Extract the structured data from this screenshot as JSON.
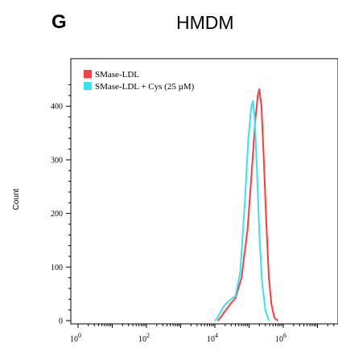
{
  "panel": {
    "letter": "G",
    "title": "HMDM"
  },
  "chart_data": {
    "type": "line",
    "ylabel": "Count",
    "xscale": "log",
    "xlim": [
      1,
      10000000
    ],
    "ylim": [
      0,
      460
    ],
    "x_ticks": [
      {
        "base": "10",
        "exp": "0",
        "value": 1
      },
      {
        "base": "10",
        "exp": "2",
        "value": 100
      },
      {
        "base": "10",
        "exp": "4",
        "value": 10000
      },
      {
        "base": "10",
        "exp": "6",
        "value": 1000000
      }
    ],
    "y_ticks": [
      0,
      100,
      200,
      300,
      400
    ],
    "legend_position": "top-left",
    "series": [
      {
        "name": "SMase-LDL",
        "color": "#ff3b3b",
        "points": [
          [
            12000,
            0
          ],
          [
            14000,
            4
          ],
          [
            17000,
            12
          ],
          [
            20000,
            18
          ],
          [
            25000,
            26
          ],
          [
            30000,
            33
          ],
          [
            40000,
            42
          ],
          [
            60000,
            80
          ],
          [
            90000,
            170
          ],
          [
            120000,
            280
          ],
          [
            150000,
            370
          ],
          [
            180000,
            420
          ],
          [
            200000,
            432
          ],
          [
            230000,
            400
          ],
          [
            270000,
            300
          ],
          [
            320000,
            180
          ],
          [
            380000,
            80
          ],
          [
            450000,
            30
          ],
          [
            550000,
            5
          ],
          [
            700000,
            0
          ]
        ]
      },
      {
        "name": "SMase-LDL + Cys (25 µM)",
        "color": "#33e5f2",
        "points": [
          [
            10000,
            0
          ],
          [
            12000,
            6
          ],
          [
            14000,
            14
          ],
          [
            17000,
            24
          ],
          [
            20000,
            30
          ],
          [
            25000,
            36
          ],
          [
            30000,
            40
          ],
          [
            40000,
            46
          ],
          [
            55000,
            90
          ],
          [
            75000,
            220
          ],
          [
            95000,
            340
          ],
          [
            115000,
            398
          ],
          [
            130000,
            410
          ],
          [
            145000,
            380
          ],
          [
            170000,
            280
          ],
          [
            200000,
            160
          ],
          [
            240000,
            70
          ],
          [
            300000,
            20
          ],
          [
            380000,
            0
          ]
        ]
      }
    ]
  }
}
